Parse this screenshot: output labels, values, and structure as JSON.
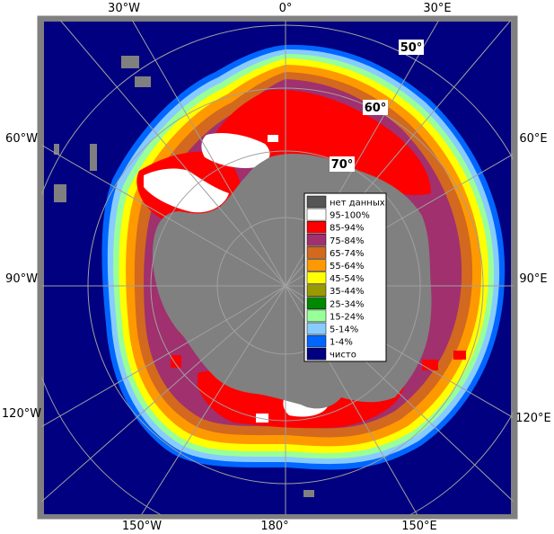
{
  "map": {
    "type": "polar stereographic sea-ice concentration map (Southern Hemisphere)",
    "longitude_labels": {
      "top": [
        "30°W",
        "0°",
        "30°E"
      ],
      "left": [
        "60°W",
        "90°W",
        "120°W"
      ],
      "right": [
        "60°E",
        "90°E",
        "120°E"
      ],
      "bottom": [
        "150°W",
        "180°",
        "150°E"
      ]
    },
    "latitude_labels": [
      "50°",
      "60°",
      "70°"
    ]
  },
  "legend": {
    "items": [
      {
        "label": "нет данных",
        "color": "#555555"
      },
      {
        "label": "95-100%",
        "color": "#ffffff"
      },
      {
        "label": "85-94%",
        "color": "#ff0000"
      },
      {
        "label": "75-84%",
        "color": "#a0306e"
      },
      {
        "label": "65-74%",
        "color": "#d2691e"
      },
      {
        "label": "55-64%",
        "color": "#ff9900"
      },
      {
        "label": "45-54%",
        "color": "#ffff00"
      },
      {
        "label": "35-44%",
        "color": "#999900"
      },
      {
        "label": "25-34%",
        "color": "#008800"
      },
      {
        "label": "15-24%",
        "color": "#99ff99"
      },
      {
        "label": "5-14%",
        "color": "#88ccff"
      },
      {
        "label": "1-4%",
        "color": "#0066ff"
      },
      {
        "label": "чисто",
        "color": "#000080"
      }
    ]
  },
  "colors": {
    "ocean": "#000080",
    "land": "#808080",
    "no_data": "#555555",
    "frame": "#808080",
    "graticule": "#a0a0a0"
  }
}
